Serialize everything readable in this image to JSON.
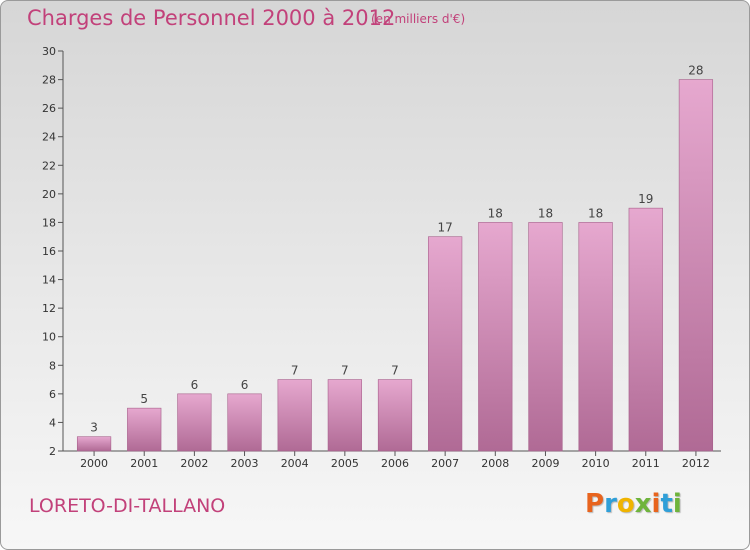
{
  "header": {
    "title": "Charges de Personnel 2000 à 2012",
    "subtitle": "(en milliers d'€)"
  },
  "footer": {
    "commune": "LORETO-DI-TALLANO",
    "logo_letters": [
      "P",
      "r",
      "o",
      "x",
      "i",
      "t",
      "i"
    ],
    "logo_colors": [
      "#e8641e",
      "#2f9fd8",
      "#f0b400",
      "#6fb43c",
      "#e8641e",
      "#2f9fd8",
      "#6fb43c"
    ]
  },
  "chart_data": {
    "type": "bar",
    "title": "Charges de Personnel 2000 à 2012",
    "subtitle": "(en milliers d'€)",
    "categories": [
      "2000",
      "2001",
      "2002",
      "2003",
      "2004",
      "2005",
      "2006",
      "2007",
      "2008",
      "2009",
      "2010",
      "2011",
      "2012"
    ],
    "values": [
      3,
      5,
      6,
      6,
      7,
      7,
      7,
      17,
      18,
      18,
      18,
      19,
      28
    ],
    "ylim": [
      2,
      30
    ],
    "yticks": [
      2,
      4,
      6,
      8,
      10,
      12,
      14,
      16,
      18,
      20,
      22,
      24,
      26,
      28,
      30
    ],
    "bar_color_top": "#e6a8cf",
    "bar_color_bottom": "#b06a95",
    "grid": false,
    "legend": "none"
  }
}
